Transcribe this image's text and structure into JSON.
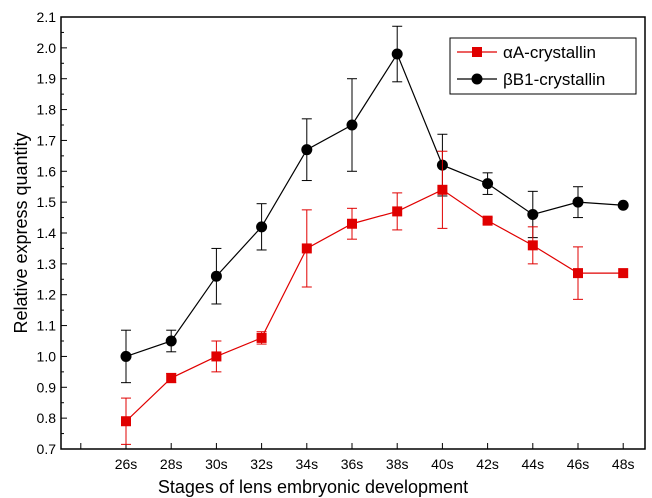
{
  "chart_data": {
    "type": "line",
    "title": "",
    "xlabel": "Stages of lens embryonic development",
    "ylabel": "Relative express quantity",
    "categories": [
      "26s",
      "28s",
      "30s",
      "32s",
      "34s",
      "36s",
      "38s",
      "40s",
      "42s",
      "44s",
      "46s",
      "48s"
    ],
    "ylim": [
      0.7,
      2.1
    ],
    "yticks": [
      "0.7",
      "0.8",
      "0.9",
      "1.0",
      "1.1",
      "1.2",
      "1.3",
      "1.4",
      "1.5",
      "1.6",
      "1.7",
      "1.8",
      "1.9",
      "2.0",
      "2.1"
    ],
    "grid": false,
    "legend_position": "top-right",
    "series": [
      {
        "name": "αA-crystallin",
        "color": "#e00000",
        "marker": "square",
        "values": [
          0.79,
          0.93,
          1.0,
          1.06,
          1.35,
          1.43,
          1.47,
          1.54,
          1.44,
          1.36,
          1.27,
          1.27
        ],
        "errors": [
          0.075,
          0.015,
          0.05,
          0.02,
          0.125,
          0.05,
          0.06,
          0.125,
          0.01,
          0.06,
          0.085,
          0.0
        ]
      },
      {
        "name": "βB1-crystallin",
        "color": "#000000",
        "marker": "circle",
        "values": [
          1.0,
          1.05,
          1.26,
          1.42,
          1.67,
          1.75,
          1.98,
          1.62,
          1.56,
          1.46,
          1.5,
          1.49
        ],
        "errors": [
          0.085,
          0.035,
          0.09,
          0.075,
          0.1,
          0.15,
          0.09,
          0.1,
          0.035,
          0.075,
          0.05,
          0.0
        ]
      }
    ]
  }
}
